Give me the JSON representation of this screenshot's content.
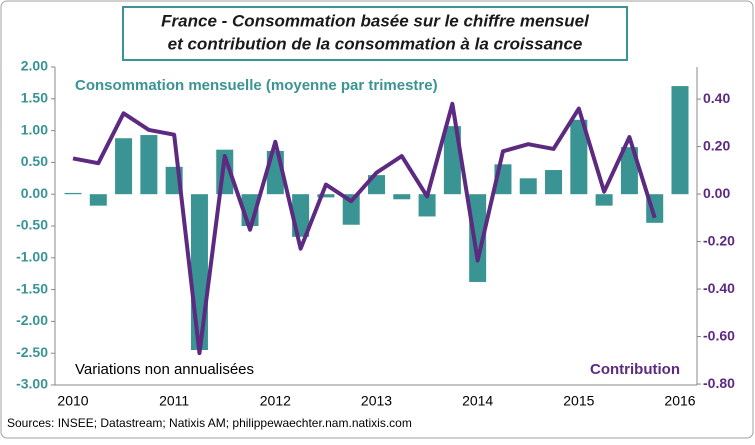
{
  "chart_data": {
    "type": "bar",
    "title": [
      "France - Consommation  basée sur le chiffre mensuel",
      "et contribution  de la consommation  à la croissance"
    ],
    "categories": [
      "2010",
      null,
      null,
      null,
      "2011",
      null,
      null,
      null,
      "2012",
      null,
      null,
      null,
      "2013",
      null,
      null,
      null,
      "2014",
      null,
      null,
      null,
      "2015",
      null,
      null,
      null,
      "2016"
    ],
    "series": [
      {
        "name": "Consommation mensuelle (moyenne par trimestre)",
        "type": "bar",
        "color": "#3a9494",
        "values": [
          0.02,
          -0.18,
          0.88,
          0.93,
          0.43,
          -2.45,
          0.7,
          -0.5,
          0.68,
          -0.67,
          -0.05,
          -0.48,
          0.3,
          -0.08,
          -0.35,
          1.07,
          -1.38,
          0.47,
          0.25,
          0.38,
          1.17,
          -0.18,
          0.74,
          -0.45,
          1.7
        ]
      },
      {
        "name": "Contribution",
        "type": "line",
        "axis": "y2",
        "color": "#5c2a80",
        "values": [
          0.15,
          0.13,
          0.34,
          0.27,
          0.25,
          -0.67,
          0.16,
          -0.15,
          0.22,
          -0.23,
          0.04,
          -0.03,
          0.09,
          0.16,
          -0.01,
          0.38,
          -0.28,
          0.18,
          0.21,
          0.19,
          0.36,
          0.01,
          0.24,
          -0.1,
          null
        ]
      }
    ],
    "ylim": [
      -3,
      2
    ],
    "yticks": [
      {
        "value": -3,
        "label": "-3.00"
      },
      {
        "value": -2.5,
        "label": "-2.50"
      },
      {
        "value": -2,
        "label": "-2.00"
      },
      {
        "value": -1.5,
        "label": "-1.50"
      },
      {
        "value": -1,
        "label": "-1.00"
      },
      {
        "value": -0.5,
        "label": "-0.50"
      },
      {
        "value": 0,
        "label": "0.00"
      },
      {
        "value": 0.5,
        "label": "0.50"
      },
      {
        "value": 1,
        "label": "1.00"
      },
      {
        "value": 1.5,
        "label": "1.50"
      },
      {
        "value": 2,
        "label": "2.00"
      }
    ],
    "y2lim": [
      -0.804,
      0.535
    ],
    "y2ticks": [
      {
        "value": -0.8,
        "label": "-0.80"
      },
      {
        "value": -0.6,
        "label": "-0.60"
      },
      {
        "value": -0.4,
        "label": "-0.40"
      },
      {
        "value": -0.2,
        "label": "-0.20"
      },
      {
        "value": 0,
        "label": "0.00"
      },
      {
        "value": 0.2,
        "label": "0.20"
      },
      {
        "value": 0.4,
        "label": "0.40"
      }
    ],
    "annotations": [
      "Variations non annualisées"
    ],
    "source": "Sources: INSEE; Datastream; Natixis AM; philippewaechter.nam.natixis.com"
  }
}
